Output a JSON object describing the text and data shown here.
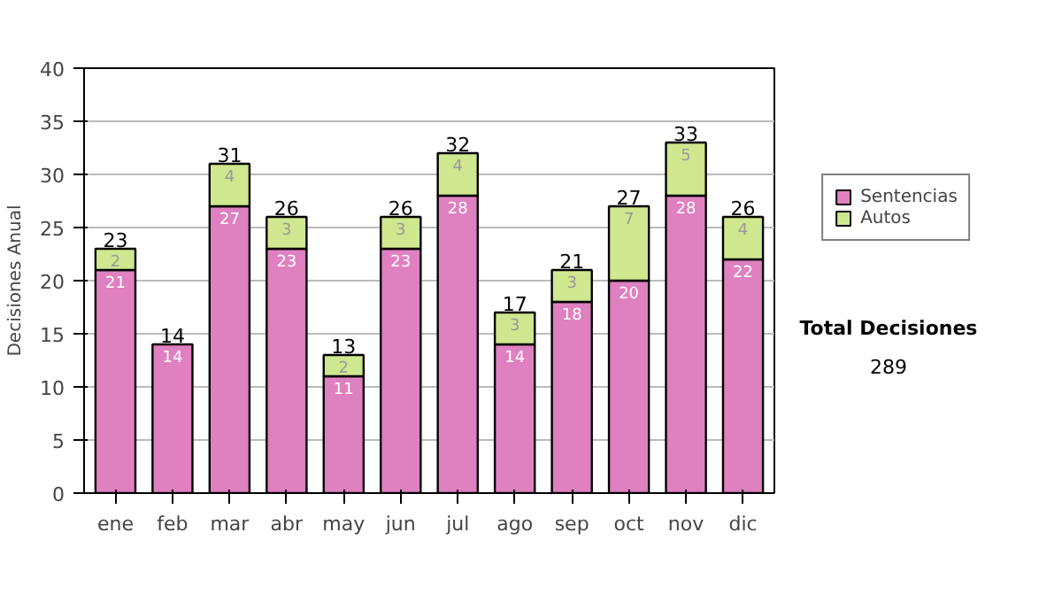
{
  "chart_data": {
    "type": "bar",
    "stacked": true,
    "ylabel": "Decisiones Anual",
    "categories": [
      "ene",
      "feb",
      "mar",
      "abr",
      "may",
      "jun",
      "jul",
      "ago",
      "sep",
      "oct",
      "nov",
      "dic"
    ],
    "series": [
      {
        "name": "Sentencias",
        "color": "#df80c0",
        "values": [
          21,
          14,
          27,
          23,
          11,
          23,
          28,
          14,
          18,
          20,
          28,
          22
        ]
      },
      {
        "name": "Autos",
        "color": "#cfe78f",
        "values": [
          2,
          null,
          4,
          3,
          2,
          3,
          4,
          3,
          3,
          7,
          5,
          4
        ]
      }
    ],
    "totals": [
      "23",
      "14",
      "31",
      "26",
      "13",
      "26",
      "32",
      "17",
      "21",
      "27",
      "33",
      "26"
    ],
    "data_labels": true,
    "ylim": [
      0,
      40
    ],
    "yticks": [
      0,
      5,
      10,
      15,
      20,
      25,
      30,
      35,
      40
    ],
    "grid": "y",
    "legend": "right",
    "annotations": [
      "Total Decisiones",
      "289"
    ]
  }
}
